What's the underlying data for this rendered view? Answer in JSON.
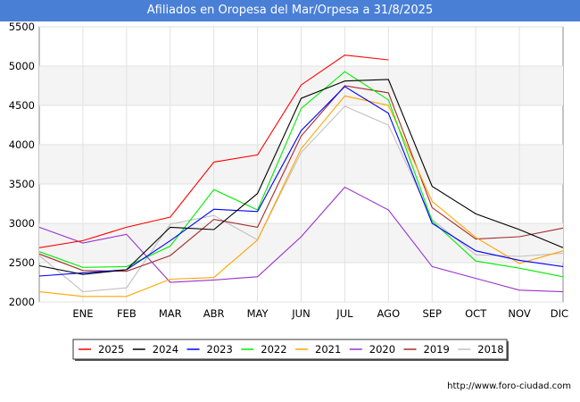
{
  "title": "Afiliados en Oropesa del Mar/Orpesa a 31/8/2025",
  "source": "http://www.foro-ciudad.com",
  "watermark": "FORO-CIUDAD.COM",
  "chart_data": {
    "type": "line",
    "categories": [
      "DIC",
      "ENE",
      "FEB",
      "MAR",
      "ABR",
      "MAY",
      "JUN",
      "JUL",
      "AGO",
      "SEP",
      "OCT",
      "NOV",
      "DIC"
    ],
    "x_tick_labels": [
      "",
      "ENE",
      "FEB",
      "MAR",
      "ABR",
      "MAY",
      "JUN",
      "JUL",
      "AGO",
      "SEP",
      "OCT",
      "NOV",
      "DIC"
    ],
    "ylim": [
      2000,
      5500
    ],
    "yticks": [
      2000,
      2500,
      3000,
      3500,
      4000,
      4500,
      5000,
      5500
    ],
    "grid": true,
    "legend_position": "bottom",
    "series": [
      {
        "name": "2025",
        "color": "#ff0000",
        "values": [
          2690,
          2780,
          2950,
          3080,
          3780,
          3870,
          4760,
          5140,
          5080,
          null,
          null,
          null,
          null
        ]
      },
      {
        "name": "2024",
        "color": "#000000",
        "values": [
          2460,
          2350,
          2410,
          2950,
          2920,
          3380,
          4590,
          4810,
          4830,
          3470,
          3120,
          2920,
          2690
        ]
      },
      {
        "name": "2023",
        "color": "#0000ff",
        "values": [
          2330,
          2370,
          2410,
          2780,
          3180,
          3150,
          4180,
          4740,
          4400,
          3000,
          2650,
          2530,
          2450
        ]
      },
      {
        "name": "2022",
        "color": "#00ee00",
        "values": [
          2640,
          2440,
          2450,
          2710,
          3430,
          3170,
          4460,
          4930,
          4570,
          3030,
          2520,
          2430,
          2320
        ]
      },
      {
        "name": "2021",
        "color": "#ffa500",
        "values": [
          2130,
          2070,
          2070,
          2290,
          2310,
          2790,
          3950,
          4620,
          4500,
          3280,
          2820,
          2490,
          2650
        ]
      },
      {
        "name": "2020",
        "color": "#9932cc",
        "values": [
          2950,
          2750,
          2860,
          2250,
          2280,
          2320,
          2830,
          3460,
          3170,
          2450,
          2300,
          2150,
          2130
        ]
      },
      {
        "name": "2019",
        "color": "#a52a2a",
        "values": [
          2610,
          2400,
          2390,
          2590,
          3050,
          2950,
          4110,
          4750,
          4660,
          3200,
          2800,
          2830,
          2940
        ]
      },
      {
        "name": "2018",
        "color": "#c0c0c0",
        "values": [
          2590,
          2130,
          2180,
          2990,
          3100,
          2790,
          3900,
          4490,
          4250,
          3050,
          2600,
          2580,
          2620
        ]
      }
    ]
  }
}
